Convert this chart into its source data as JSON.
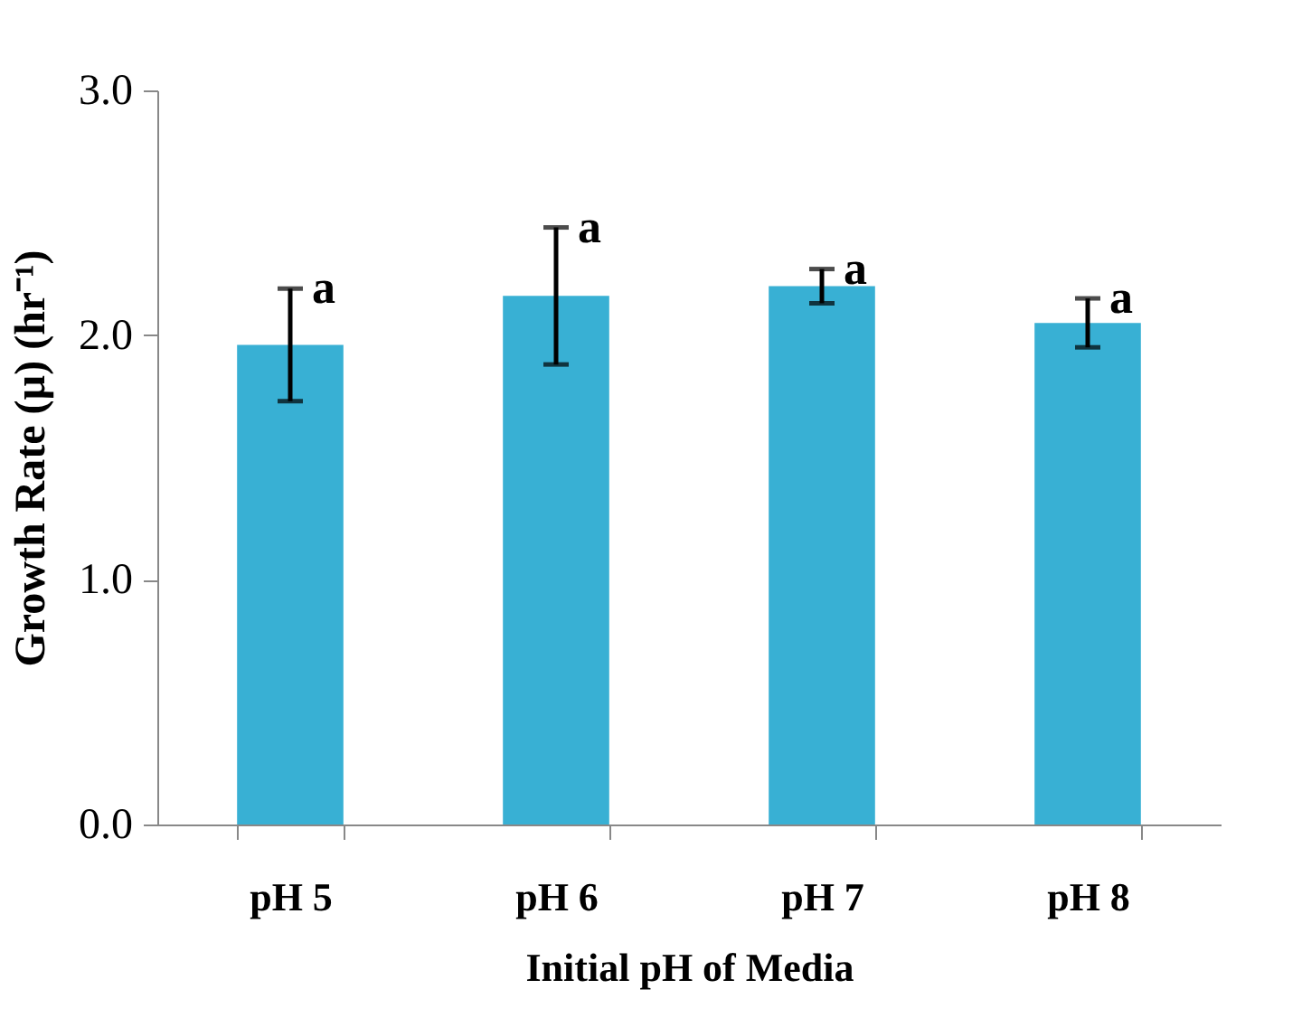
{
  "chart_data": {
    "type": "bar",
    "xlabel": "Initial pH of Media",
    "ylabel": "Growth Rate (µ) (hr⁻¹)",
    "categories": [
      "pH 5",
      "pH 6",
      "pH 7",
      "pH 8"
    ],
    "values": [
      1.96,
      2.16,
      2.2,
      2.05
    ],
    "errors": [
      0.23,
      0.28,
      0.07,
      0.1
    ],
    "color": "#38b0d4",
    "ylim": [
      0,
      3
    ],
    "yticks": [
      {
        "value": 0,
        "label": "0.0"
      },
      {
        "value": 1,
        "label": "1.0"
      },
      {
        "value": 2,
        "label": "2.0"
      },
      {
        "value": 3,
        "label": "3.0"
      }
    ],
    "grid": false,
    "annotations": [
      {
        "text": "a",
        "x": "pH 5",
        "y": 2.19
      },
      {
        "text": "a",
        "x": "pH 6",
        "y": 2.44
      },
      {
        "text": "a",
        "x": "pH 7",
        "y": 2.27
      },
      {
        "text": "a",
        "x": "pH 8",
        "y": 2.15
      }
    ]
  }
}
